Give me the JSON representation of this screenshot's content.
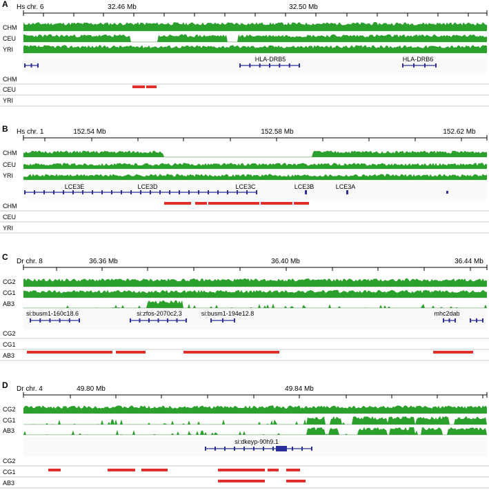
{
  "colors": {
    "coverage": "#2ca02c",
    "deletion": "#e0302a",
    "gene": "#2b2f9b",
    "axis": "#000000",
    "divider": "#c9c9c9"
  },
  "panels": [
    {
      "letter": "A",
      "chrom_label": "Hs chr. 6",
      "coord_labels": [
        "32.46 Mb",
        "32.50 Mb"
      ],
      "coverage_tracks": [
        "CHM",
        "CEU",
        "YRI"
      ],
      "genes": [
        "HLA-DRB5",
        "HLA-DRB6"
      ],
      "deletion_tracks": [
        "CHM",
        "CEU",
        "YRI"
      ]
    },
    {
      "letter": "B",
      "chrom_label": "Hs chr. 1",
      "coord_labels": [
        "152.54 Mb",
        "152.58 Mb",
        "152.62 Mb"
      ],
      "coverage_tracks": [
        "CHM",
        "CEU",
        "YRI"
      ],
      "genes": [
        "LCE3E",
        "LCE3D",
        "LCE3C",
        "LCE3B",
        "LCE3A"
      ],
      "deletion_tracks": [
        "CHM",
        "CEU",
        "YRI"
      ]
    },
    {
      "letter": "C",
      "chrom_label": "Dr chr. 8",
      "coord_labels": [
        "36.36 Mb",
        "36.40 Mb",
        "36.44 Mb"
      ],
      "coverage_tracks": [
        "CG2",
        "CG1",
        "AB3"
      ],
      "genes": [
        "si:busm1-160c18.6",
        "si:zfos-2070c2.3",
        "si:busm1-194e12.8",
        "mhc2dab"
      ],
      "deletion_tracks": [
        "CG2",
        "CG1",
        "AB3"
      ]
    },
    {
      "letter": "D",
      "chrom_label": "Dr chr. 4",
      "coord_labels": [
        "49.80 Mb",
        "49.84 Mb"
      ],
      "coverage_tracks": [
        "CG2",
        "CG1",
        "AB3"
      ],
      "genes": [
        "si:dkeyp-90h9.1"
      ],
      "deletion_tracks": [
        "CG2",
        "CG1",
        "AB3"
      ]
    }
  ]
}
